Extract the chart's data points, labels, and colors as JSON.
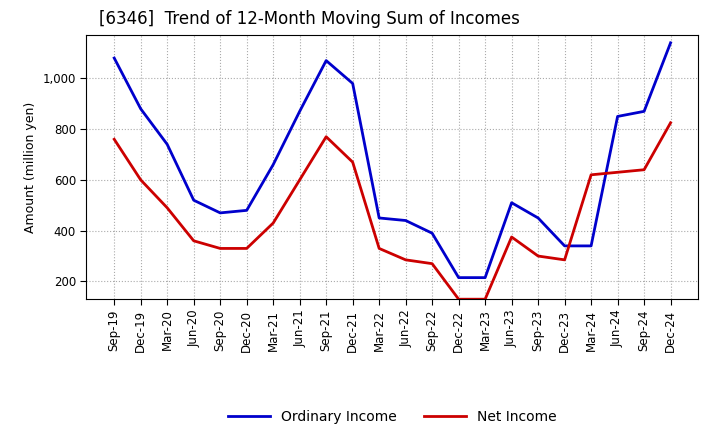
{
  "title": "[6346]  Trend of 12-Month Moving Sum of Incomes",
  "ylabel": "Amount (million yen)",
  "ylim": [
    130,
    1170
  ],
  "yticks": [
    200,
    400,
    600,
    800,
    1000
  ],
  "x_labels": [
    "Sep-19",
    "Dec-19",
    "Mar-20",
    "Jun-20",
    "Sep-20",
    "Dec-20",
    "Mar-21",
    "Jun-21",
    "Sep-21",
    "Dec-21",
    "Mar-22",
    "Jun-22",
    "Sep-22",
    "Dec-22",
    "Mar-23",
    "Jun-23",
    "Sep-23",
    "Dec-23",
    "Mar-24",
    "Jun-24",
    "Sep-24",
    "Dec-24"
  ],
  "ordinary_income": [
    1080,
    880,
    740,
    520,
    470,
    480,
    660,
    870,
    1070,
    980,
    450,
    440,
    390,
    215,
    215,
    510,
    450,
    340,
    340,
    850,
    870,
    1140
  ],
  "net_income": [
    760,
    600,
    490,
    360,
    330,
    330,
    430,
    600,
    770,
    670,
    330,
    285,
    270,
    130,
    130,
    375,
    300,
    285,
    620,
    630,
    640,
    825
  ],
  "ordinary_color": "#0000cc",
  "net_color": "#cc0000",
  "background_color": "#ffffff",
  "grid_color": "#aaaaaa",
  "title_fontsize": 12,
  "label_fontsize": 9,
  "tick_fontsize": 8.5,
  "legend_fontsize": 10
}
